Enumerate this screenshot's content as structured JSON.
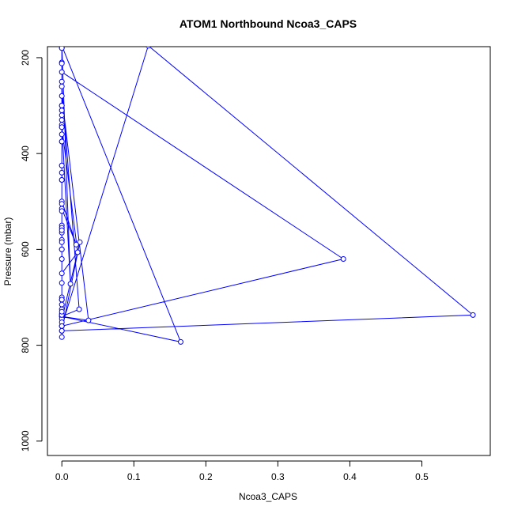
{
  "chart_data": {
    "type": "line",
    "title": "ATOM1 Northbound Ncoa3_CAPS",
    "xlabel": "Ncoa3_CAPS",
    "ylabel": "Pressure (mbar)",
    "xlim": [
      -0.02,
      0.595
    ],
    "ylim": [
      1030,
      177
    ],
    "y_reversed": true,
    "x_ticks": [
      0.0,
      0.1,
      0.2,
      0.3,
      0.4,
      0.5
    ],
    "x_tick_labels": [
      "0.0",
      "0.1",
      "0.2",
      "0.3",
      "0.4",
      "0.5"
    ],
    "y_ticks": [
      200,
      400,
      600,
      800,
      1000
    ],
    "y_tick_labels": [
      "200",
      "400",
      "600",
      "800",
      "1000"
    ],
    "grid": false,
    "series": [
      {
        "color": "#0000ff",
        "marker": "open-circle",
        "x": [
          0,
          0.001,
          0.025,
          0.0,
          0.571,
          0.12,
          0.0,
          0.0,
          0.0,
          0.0,
          0.022,
          0.0,
          0.0,
          0.0,
          0.391,
          0.0,
          0.0,
          0.0,
          0.024,
          0.0,
          0.037,
          0.0,
          0.0,
          0.0,
          0.165,
          0.0,
          0.0,
          0.0,
          0.0,
          0.012,
          0.0,
          0.0,
          0.0,
          0.0,
          0.0,
          0.0,
          0.0,
          0.02,
          0.0,
          0.0,
          0.0,
          0.0,
          0.0,
          0.0,
          0.0,
          0.0,
          0.0,
          0.0,
          0.0,
          0.0,
          0.0,
          0.0,
          0.0,
          0.0,
          0.0,
          0.0,
          0.0,
          0.0,
          0.0,
          0.0,
          0.0,
          0.0,
          0.0,
          0.0,
          0.0,
          0.0,
          0.0,
          0.0,
          0.0,
          0.0,
          0.0
        ],
        "y": [
          783,
          740,
          585,
          770,
          737,
          175,
          760,
          705,
          180,
          345,
          606,
          650,
          210,
          230,
          620,
          760,
          250,
          260,
          725,
          740,
          748,
          280,
          300,
          740,
          793,
          175,
          310,
          320,
          340,
          672,
          175,
          360,
          375,
          425,
          440,
          455,
          500,
          590,
          515,
          550,
          555,
          565,
          580,
          600,
          620,
          670,
          700,
          715,
          725,
          735,
          745,
          752,
          760,
          770,
          737,
          180,
          705,
          212,
          300,
          330,
          345,
          375,
          425,
          455,
          505,
          520,
          560,
          585,
          600,
          705,
          730
        ]
      }
    ]
  }
}
